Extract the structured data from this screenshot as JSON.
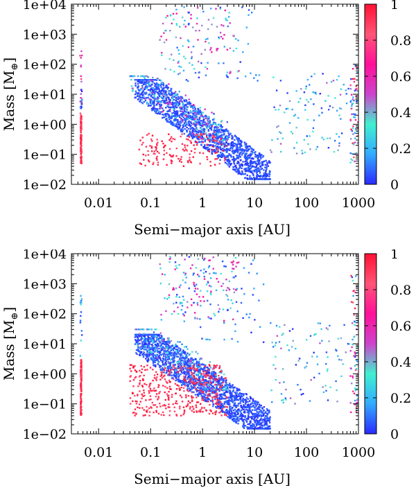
{
  "chart_data": [
    {
      "type": "scatter",
      "xscale": "log",
      "yscale": "log",
      "xlabel": "Semi−major axis [AU]",
      "ylabel_prefix": "Mass [M",
      "ylabel_symbol": "⊕",
      "ylabel_suffix": "]",
      "xlim": [
        0.003,
        1000
      ],
      "ylim": [
        0.01,
        10000
      ],
      "xticks": [
        0.01,
        0.1,
        1,
        10,
        100,
        1000
      ],
      "xtick_labels": [
        "0.01",
        "0.1",
        "1",
        "10",
        "100",
        "1000"
      ],
      "yticks": [
        0.01,
        0.1,
        1,
        10,
        100,
        1000,
        10000
      ],
      "ytick_labels": [
        "1e−02",
        "1e−01",
        "1e+00",
        "1e+01",
        "1e+02",
        "1e+03",
        "1e+04"
      ],
      "colorbar": {
        "range": [
          0,
          1
        ],
        "ticks": [
          0,
          0.2,
          0.4,
          0.6,
          0.8,
          1
        ],
        "tick_labels": [
          "0",
          "0.2",
          "0.4",
          "0.6",
          "0.8",
          "1"
        ],
        "colors": [
          "#2a2aff",
          "#33aaff",
          "#40f0d0",
          "#cc44cc",
          "#ff1199",
          "#ff5577",
          "#ff1133"
        ]
      },
      "clusters": [
        {
          "name": "hot-column",
          "x": [
            0.0045,
            0.0047
          ],
          "y": [
            0.05,
            2
          ],
          "color": [
            0.85,
            1.0
          ],
          "n": 120
        },
        {
          "name": "hot-column-top",
          "x": [
            0.0044,
            0.0048
          ],
          "y": [
            2,
            400
          ],
          "color": [
            0.4,
            0.95
          ],
          "n": 20
        },
        {
          "name": "hot-column-blue",
          "x": [
            0.0044,
            0.0048
          ],
          "y": [
            3,
            30
          ],
          "color": [
            0.0,
            0.2
          ],
          "n": 10
        },
        {
          "name": "main-diagonal",
          "x": [
            0.05,
            20
          ],
          "y": [
            0.015,
            30
          ],
          "diag": true,
          "color": [
            0.0,
            0.1
          ],
          "n": 1700
        },
        {
          "name": "diagonal-mixed",
          "x": [
            0.04,
            3
          ],
          "y": [
            0.3,
            40
          ],
          "diag": true,
          "color": [
            0.05,
            0.6
          ],
          "n": 250
        },
        {
          "name": "red-low",
          "x": [
            0.06,
            3
          ],
          "y": [
            0.04,
            0.5
          ],
          "color": [
            0.85,
            1.0
          ],
          "n": 160
        },
        {
          "name": "giant-cloud",
          "x": [
            0.15,
            5
          ],
          "y": [
            50,
            8000
          ],
          "color": [
            0.2,
            0.7
          ],
          "n": 110
        },
        {
          "name": "giant-blue",
          "x": [
            0.3,
            15
          ],
          "y": [
            20,
            8000
          ],
          "color": [
            0.0,
            0.2
          ],
          "n": 50
        },
        {
          "name": "outer-scatter",
          "x": [
            20,
            1000
          ],
          "y": [
            0.1,
            50
          ],
          "color": [
            0.0,
            0.5
          ],
          "n": 130
        },
        {
          "name": "outer-edge",
          "x": [
            700,
            1000
          ],
          "y": [
            0.05,
            100
          ],
          "color": [
            0.0,
            1.0
          ],
          "n": 50
        }
      ],
      "seed": 7
    },
    {
      "type": "scatter",
      "xscale": "log",
      "yscale": "log",
      "xlabel": "Semi−major axis [AU]",
      "ylabel_prefix": "Mass [M",
      "ylabel_symbol": "⊕",
      "ylabel_suffix": "]",
      "xlim": [
        0.003,
        1000
      ],
      "ylim": [
        0.01,
        10000
      ],
      "xticks": [
        0.01,
        0.1,
        1,
        10,
        100,
        1000
      ],
      "xtick_labels": [
        "0.01",
        "0.1",
        "1",
        "10",
        "100",
        "1000"
      ],
      "yticks": [
        0.01,
        0.1,
        1,
        10,
        100,
        1000,
        10000
      ],
      "ytick_labels": [
        "1e−02",
        "1e−01",
        "1e+00",
        "1e+01",
        "1e+02",
        "1e+03",
        "1e+04"
      ],
      "colorbar": {
        "range": [
          0,
          1
        ],
        "ticks": [
          0,
          0.2,
          0.4,
          0.6,
          0.8,
          1
        ],
        "tick_labels": [
          "0",
          "0.2",
          "0.4",
          "0.6",
          "0.8",
          "1"
        ],
        "colors": [
          "#2a2aff",
          "#33aaff",
          "#40f0d0",
          "#cc44cc",
          "#ff1199",
          "#ff5577",
          "#ff1133"
        ]
      },
      "clusters": [
        {
          "name": "hot-column",
          "x": [
            0.0045,
            0.0047
          ],
          "y": [
            0.04,
            3
          ],
          "color": [
            0.85,
            1.0
          ],
          "n": 120
        },
        {
          "name": "hot-column-blue",
          "x": [
            0.0044,
            0.0048
          ],
          "y": [
            3,
            700
          ],
          "color": [
            0.0,
            0.3
          ],
          "n": 14
        },
        {
          "name": "main-diagonal",
          "x": [
            0.05,
            20
          ],
          "y": [
            0.015,
            20
          ],
          "diag": true,
          "color": [
            0.0,
            0.1
          ],
          "n": 1900
        },
        {
          "name": "diagonal-mixed",
          "x": [
            0.05,
            3
          ],
          "y": [
            0.3,
            30
          ],
          "diag": true,
          "color": [
            0.05,
            0.5
          ],
          "n": 200
        },
        {
          "name": "red-low",
          "x": [
            0.04,
            3
          ],
          "y": [
            0.04,
            2
          ],
          "color": [
            0.85,
            1.0
          ],
          "n": 420
        },
        {
          "name": "giant-cloud",
          "x": [
            0.15,
            5
          ],
          "y": [
            50,
            8000
          ],
          "color": [
            0.2,
            0.7
          ],
          "n": 120
        },
        {
          "name": "giant-blue",
          "x": [
            0.3,
            15
          ],
          "y": [
            10,
            8000
          ],
          "color": [
            0.0,
            0.2
          ],
          "n": 90
        },
        {
          "name": "outer-scatter",
          "x": [
            20,
            1000
          ],
          "y": [
            0.1,
            50
          ],
          "color": [
            0.0,
            0.5
          ],
          "n": 110
        },
        {
          "name": "outer-edge",
          "x": [
            700,
            1000
          ],
          "y": [
            0.05,
            2000
          ],
          "color": [
            0.0,
            1.0
          ],
          "n": 50
        }
      ],
      "seed": 42
    }
  ]
}
